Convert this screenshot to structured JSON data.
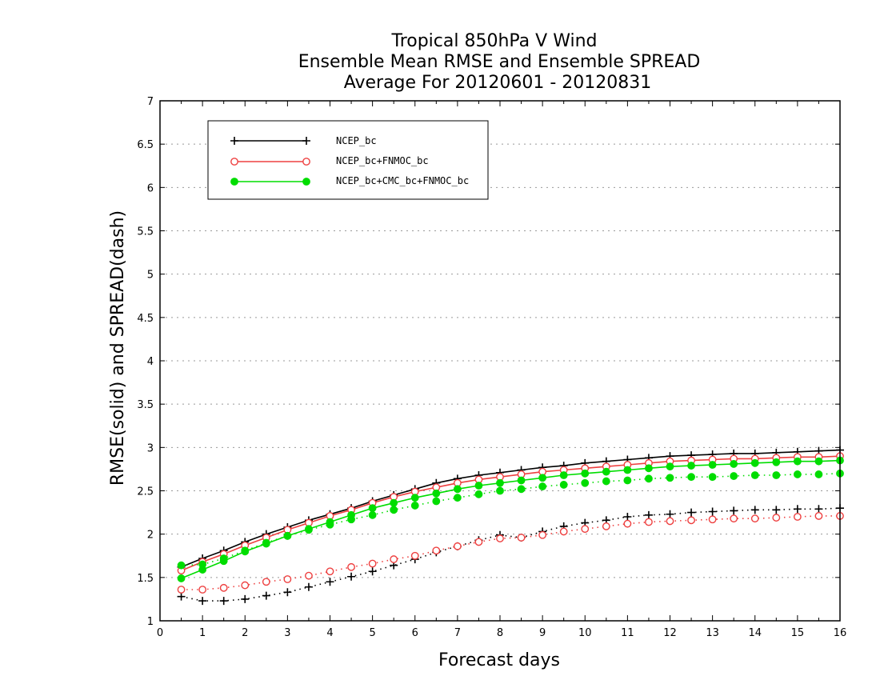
{
  "chart_data": {
    "type": "line",
    "title": [
      "Tropical 850hPa V Wind",
      "Ensemble Mean RMSE and Ensemble SPREAD",
      "Average For 20120601 - 20120831"
    ],
    "xlabel": "Forecast days",
    "ylabel": "RMSE(solid) and SPREAD(dash)",
    "xlim": [
      0,
      16
    ],
    "ylim": [
      1,
      7
    ],
    "xticks": [
      "0",
      "1",
      "2",
      "3",
      "4",
      "5",
      "6",
      "7",
      "8",
      "9",
      "10",
      "11",
      "12",
      "13",
      "14",
      "15",
      "16"
    ],
    "yticks": [
      "1",
      "1.5",
      "2",
      "2.5",
      "3",
      "3.5",
      "4",
      "4.5",
      "5",
      "5.5",
      "6",
      "6.5",
      "7"
    ],
    "grid": true,
    "legend_position": "top-left",
    "x": [
      0.5,
      1,
      1.5,
      2,
      2.5,
      3,
      3.5,
      4,
      4.5,
      5,
      5.5,
      6,
      6.5,
      7,
      7.5,
      8,
      8.5,
      9,
      9.5,
      10,
      10.5,
      11,
      11.5,
      12,
      12.5,
      13,
      13.5,
      14,
      14.5,
      15,
      15.5,
      16
    ],
    "series": [
      {
        "name": "NCEP_bc",
        "color": "#000000",
        "marker": "plus",
        "rmse": [
          1.62,
          1.72,
          1.81,
          1.91,
          2.0,
          2.08,
          2.16,
          2.23,
          2.3,
          2.38,
          2.45,
          2.52,
          2.59,
          2.64,
          2.68,
          2.71,
          2.74,
          2.77,
          2.79,
          2.82,
          2.84,
          2.86,
          2.88,
          2.9,
          2.91,
          2.92,
          2.93,
          2.93,
          2.94,
          2.95,
          2.96,
          2.97
        ],
        "spread": [
          1.28,
          1.23,
          1.23,
          1.25,
          1.29,
          1.33,
          1.39,
          1.45,
          1.51,
          1.57,
          1.64,
          1.71,
          1.79,
          1.86,
          1.93,
          1.99,
          1.96,
          2.03,
          2.09,
          2.13,
          2.16,
          2.2,
          2.22,
          2.23,
          2.25,
          2.26,
          2.27,
          2.28,
          2.28,
          2.29,
          2.29,
          2.3
        ]
      },
      {
        "name": "NCEP_bc+FNMOC_bc",
        "color": "#ee4040",
        "marker": "open-circle",
        "rmse": [
          1.58,
          1.68,
          1.77,
          1.87,
          1.96,
          2.05,
          2.13,
          2.21,
          2.28,
          2.36,
          2.43,
          2.49,
          2.54,
          2.59,
          2.63,
          2.66,
          2.69,
          2.72,
          2.74,
          2.76,
          2.78,
          2.8,
          2.82,
          2.84,
          2.85,
          2.86,
          2.87,
          2.87,
          2.88,
          2.89,
          2.89,
          2.9
        ],
        "spread": [
          1.36,
          1.36,
          1.38,
          1.41,
          1.45,
          1.48,
          1.52,
          1.57,
          1.62,
          1.66,
          1.71,
          1.75,
          1.81,
          1.86,
          1.91,
          1.95,
          1.96,
          1.99,
          2.03,
          2.06,
          2.09,
          2.12,
          2.14,
          2.15,
          2.16,
          2.17,
          2.18,
          2.18,
          2.19,
          2.2,
          2.21,
          2.21
        ]
      },
      {
        "name": "NCEP_bc+CMC_bc+FNMOC_bc",
        "color": "#00dd00",
        "marker": "filled-circle",
        "rmse": [
          1.49,
          1.59,
          1.69,
          1.8,
          1.89,
          1.98,
          2.06,
          2.14,
          2.22,
          2.3,
          2.36,
          2.42,
          2.47,
          2.52,
          2.56,
          2.59,
          2.62,
          2.65,
          2.68,
          2.7,
          2.72,
          2.74,
          2.76,
          2.78,
          2.79,
          2.8,
          2.81,
          2.82,
          2.83,
          2.84,
          2.84,
          2.85
        ],
        "spread": [
          1.64,
          1.65,
          1.72,
          1.81,
          1.9,
          1.98,
          2.05,
          2.11,
          2.17,
          2.22,
          2.28,
          2.33,
          2.38,
          2.42,
          2.46,
          2.5,
          2.52,
          2.55,
          2.57,
          2.59,
          2.61,
          2.62,
          2.64,
          2.65,
          2.66,
          2.66,
          2.67,
          2.68,
          2.68,
          2.69,
          2.69,
          2.7
        ]
      }
    ]
  }
}
